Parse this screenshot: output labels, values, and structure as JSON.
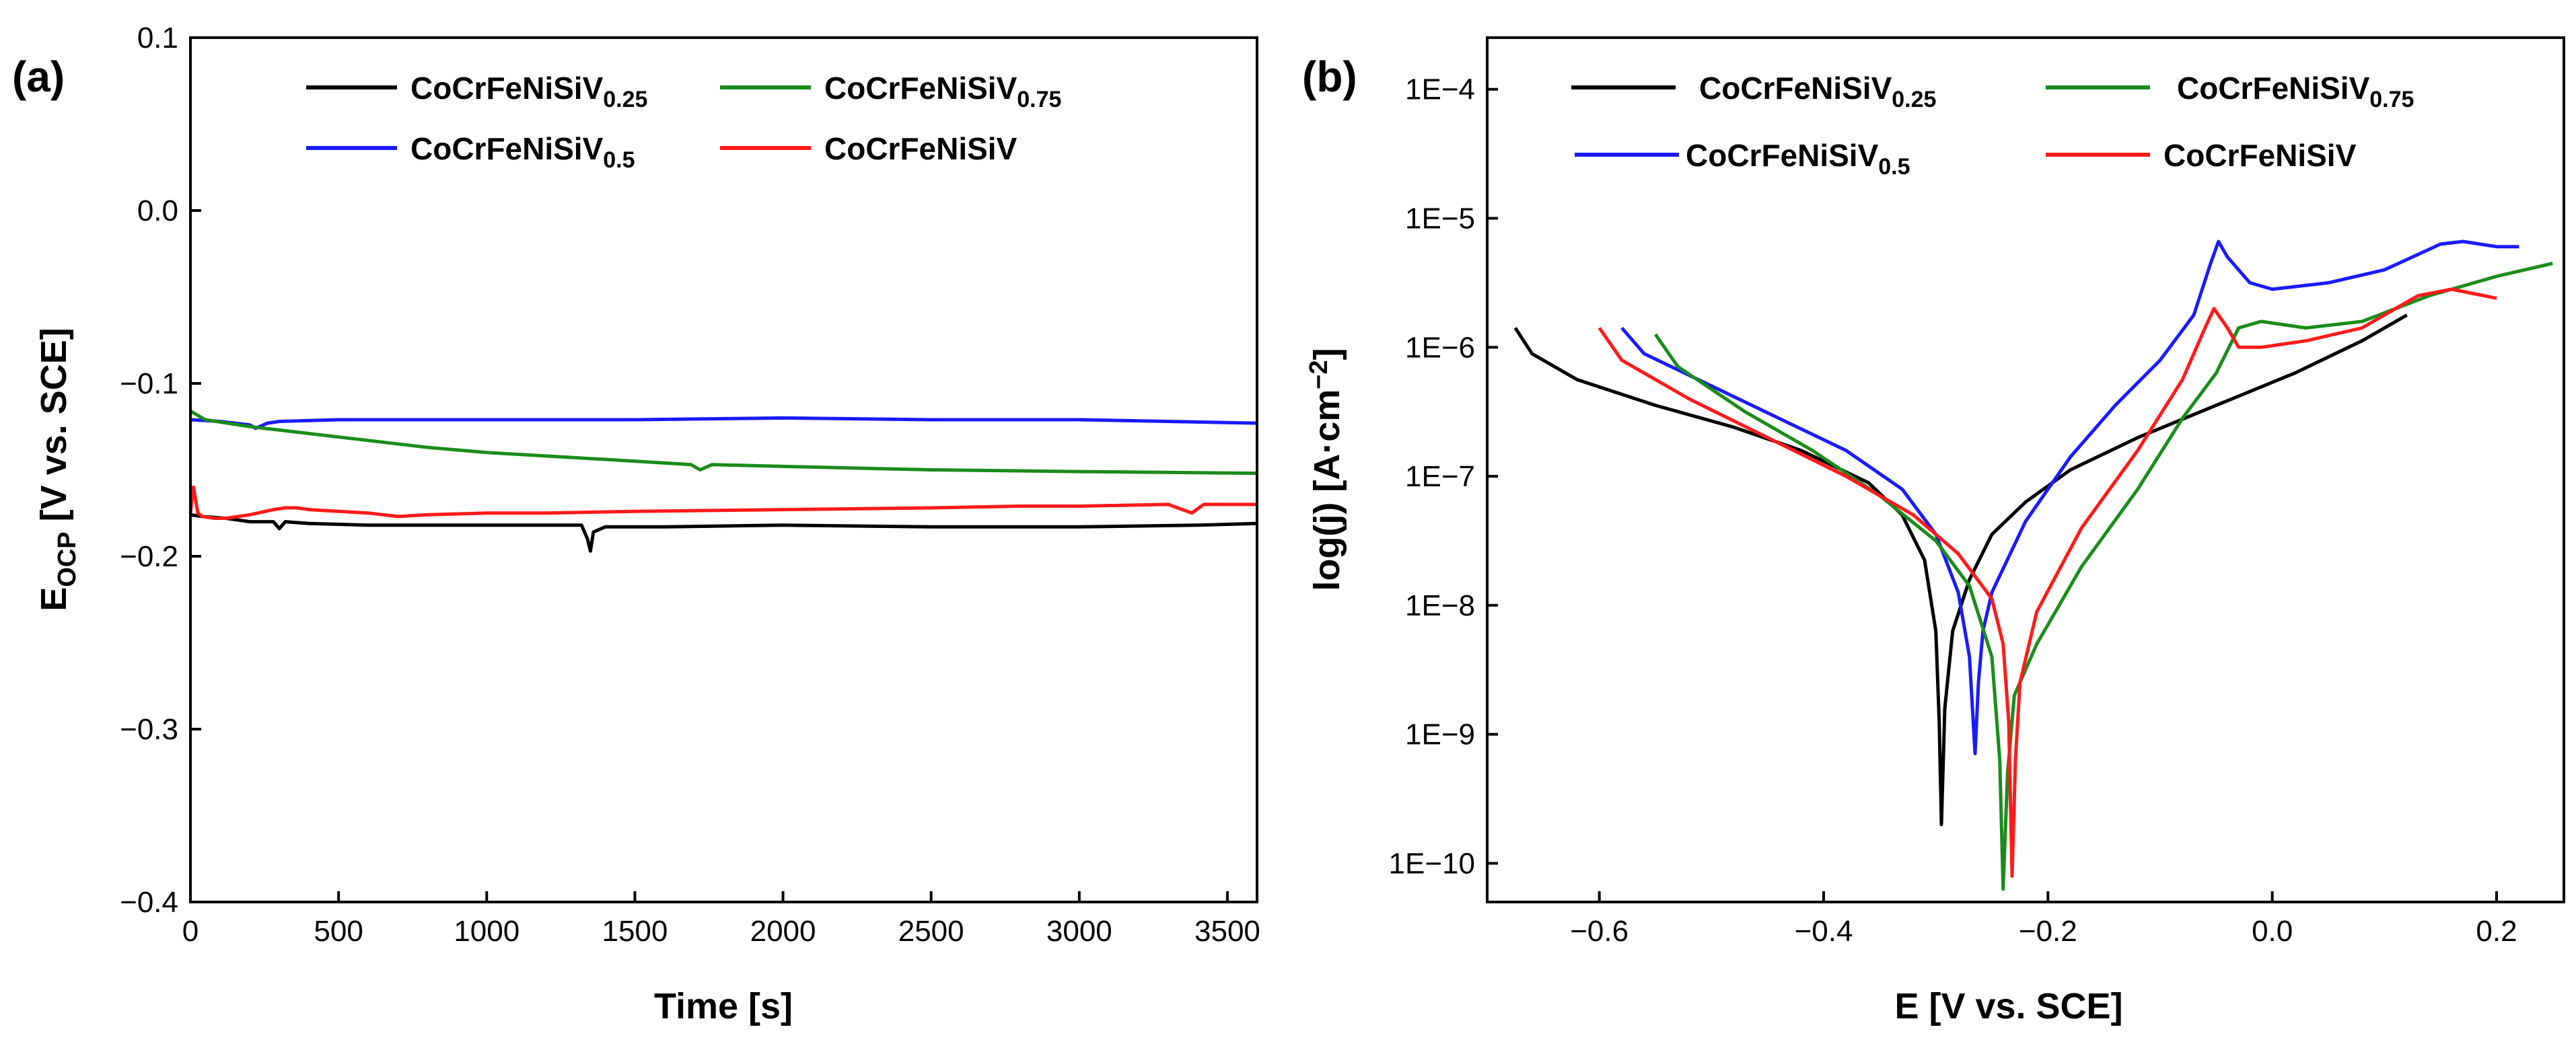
{
  "panels": [
    {
      "label": "(a)",
      "type": "line",
      "xlabel": "Time [s]",
      "ylabel_main": "E",
      "ylabel_sub": "OCP",
      "ylabel_rest": " [V vs. SCE]",
      "xlim": [
        0,
        3600
      ],
      "ylim": [
        -0.4,
        0.1
      ],
      "xticks": [
        "0",
        "500",
        "1000",
        "1500",
        "2000",
        "2500",
        "3000",
        "3500"
      ],
      "xtick_values": [
        0,
        500,
        1000,
        1500,
        2000,
        2500,
        3000,
        3500
      ],
      "yticks": [
        "−0.4",
        "−0.3",
        "−0.2",
        "−0.1",
        "0.0",
        "0.1"
      ],
      "ytick_values": [
        -0.4,
        -0.3,
        -0.2,
        -0.1,
        0.0,
        0.1
      ],
      "series": [
        {
          "name": "CoCrFeNiSiV",
          "sub": "0.25",
          "color": "#000000",
          "x": [
            0,
            40,
            120,
            200,
            280,
            300,
            320,
            400,
            600,
            800,
            1000,
            1200,
            1320,
            1340,
            1350,
            1360,
            1400,
            1600,
            2000,
            2500,
            3000,
            3400,
            3600
          ],
          "y": [
            -0.176,
            -0.177,
            -0.178,
            -0.18,
            -0.18,
            -0.184,
            -0.18,
            -0.181,
            -0.182,
            -0.182,
            -0.182,
            -0.182,
            -0.182,
            -0.19,
            -0.197,
            -0.186,
            -0.183,
            -0.183,
            -0.182,
            -0.183,
            -0.183,
            -0.182,
            -0.181
          ]
        },
        {
          "name": "CoCrFeNiSiV",
          "sub": "0.5",
          "color": "#1a1aff",
          "x": [
            0,
            100,
            200,
            220,
            260,
            300,
            500,
            800,
            1000,
            1500,
            2000,
            2500,
            3000,
            3300,
            3600
          ],
          "y": [
            -0.121,
            -0.122,
            -0.124,
            -0.126,
            -0.123,
            -0.122,
            -0.121,
            -0.121,
            -0.121,
            -0.121,
            -0.12,
            -0.121,
            -0.121,
            -0.122,
            -0.123
          ]
        },
        {
          "name": "CoCrFeNiSiV",
          "sub": "0.75",
          "color": "#1a8c1a",
          "x": [
            0,
            50,
            200,
            400,
            600,
            800,
            1000,
            1200,
            1500,
            1690,
            1720,
            1760,
            2000,
            2500,
            3000,
            3600
          ],
          "y": [
            -0.116,
            -0.121,
            -0.125,
            -0.129,
            -0.133,
            -0.137,
            -0.14,
            -0.142,
            -0.145,
            -0.147,
            -0.15,
            -0.147,
            -0.148,
            -0.15,
            -0.151,
            -0.152
          ]
        },
        {
          "name": "CoCrFeNiSiV",
          "sub": "",
          "color": "#ff1a1a",
          "x": [
            0,
            10,
            25,
            40,
            80,
            120,
            200,
            280,
            320,
            360,
            400,
            500,
            600,
            700,
            800,
            1000,
            1200,
            1500,
            2000,
            2500,
            2800,
            3000,
            3300,
            3380,
            3420,
            3600
          ],
          "y": [
            -0.175,
            -0.16,
            -0.175,
            -0.177,
            -0.178,
            -0.178,
            -0.176,
            -0.173,
            -0.172,
            -0.172,
            -0.173,
            -0.174,
            -0.175,
            -0.177,
            -0.176,
            -0.175,
            -0.175,
            -0.174,
            -0.173,
            -0.172,
            -0.171,
            -0.171,
            -0.17,
            -0.175,
            -0.17,
            -0.17
          ]
        }
      ]
    },
    {
      "label": "(b)",
      "type": "line",
      "xlabel": "E [V vs. SCE]",
      "ylabel_main": "log(j) [A·cm",
      "ylabel_sup": "−2",
      "ylabel_rest": "]",
      "xlim": [
        -0.7,
        0.26
      ],
      "ylim_exp": [
        -10.3,
        -3.6
      ],
      "xticks": [
        "−0.6",
        "−0.4",
        "−0.2",
        "0.0",
        "0.2"
      ],
      "xtick_values": [
        -0.6,
        -0.4,
        -0.2,
        0.0,
        0.2
      ],
      "yticks": [
        "1E−10",
        "1E−9",
        "1E−8",
        "1E−7",
        "1E−6",
        "1E−5",
        "1E−4"
      ],
      "ytick_exps": [
        -10,
        -9,
        -8,
        -7,
        -6,
        -5,
        -4
      ],
      "series": [
        {
          "name": "CoCrFeNiSiV",
          "sub": "0.25",
          "color": "#000000",
          "x": [
            -0.675,
            -0.66,
            -0.62,
            -0.55,
            -0.48,
            -0.42,
            -0.36,
            -0.33,
            -0.31,
            -0.3,
            -0.297,
            -0.295,
            -0.292,
            -0.285,
            -0.27,
            -0.25,
            -0.22,
            -0.18,
            -0.12,
            -0.05,
            0.02,
            0.08,
            0.12
          ],
          "y": [
            -5.85,
            -6.05,
            -6.25,
            -6.45,
            -6.62,
            -6.8,
            -7.05,
            -7.3,
            -7.65,
            -8.2,
            -8.9,
            -9.7,
            -8.8,
            -8.2,
            -7.8,
            -7.45,
            -7.2,
            -6.95,
            -6.7,
            -6.45,
            -6.2,
            -5.95,
            -5.75
          ]
        },
        {
          "name": "CoCrFeNiSiV",
          "sub": "0.5",
          "color": "#1a1aff",
          "x": [
            -0.58,
            -0.56,
            -0.5,
            -0.44,
            -0.38,
            -0.33,
            -0.3,
            -0.28,
            -0.27,
            -0.265,
            -0.262,
            -0.258,
            -0.25,
            -0.22,
            -0.18,
            -0.14,
            -0.1,
            -0.07,
            -0.055,
            -0.048,
            -0.04,
            -0.02,
            0.0,
            0.05,
            0.1,
            0.15,
            0.17,
            0.2,
            0.22
          ],
          "y": [
            -5.85,
            -6.05,
            -6.3,
            -6.55,
            -6.8,
            -7.1,
            -7.45,
            -7.9,
            -8.4,
            -9.15,
            -8.6,
            -8.2,
            -7.9,
            -7.35,
            -6.85,
            -6.45,
            -6.1,
            -5.75,
            -5.35,
            -5.18,
            -5.3,
            -5.5,
            -5.55,
            -5.5,
            -5.4,
            -5.2,
            -5.18,
            -5.22,
            -5.22
          ]
        },
        {
          "name": "CoCrFeNiSiV",
          "sub": "0.75",
          "color": "#1a8c1a",
          "x": [
            -0.55,
            -0.53,
            -0.47,
            -0.41,
            -0.35,
            -0.3,
            -0.27,
            -0.25,
            -0.243,
            -0.24,
            -0.236,
            -0.23,
            -0.21,
            -0.17,
            -0.12,
            -0.08,
            -0.05,
            -0.03,
            -0.01,
            0.03,
            0.08,
            0.14,
            0.2,
            0.25
          ],
          "y": [
            -5.9,
            -6.15,
            -6.5,
            -6.8,
            -7.15,
            -7.5,
            -7.85,
            -8.4,
            -9.2,
            -10.2,
            -9.3,
            -8.7,
            -8.3,
            -7.7,
            -7.1,
            -6.55,
            -6.2,
            -5.85,
            -5.8,
            -5.85,
            -5.8,
            -5.6,
            -5.45,
            -5.35
          ]
        },
        {
          "name": "CoCrFeNiSiV",
          "sub": "",
          "color": "#ff1a1a",
          "x": [
            -0.6,
            -0.58,
            -0.52,
            -0.45,
            -0.38,
            -0.32,
            -0.28,
            -0.25,
            -0.24,
            -0.235,
            -0.232,
            -0.229,
            -0.225,
            -0.21,
            -0.17,
            -0.12,
            -0.08,
            -0.06,
            -0.052,
            -0.04,
            -0.03,
            -0.01,
            0.03,
            0.08,
            0.13,
            0.16,
            0.2
          ],
          "y": [
            -5.85,
            -6.1,
            -6.4,
            -6.7,
            -7.0,
            -7.3,
            -7.6,
            -7.95,
            -8.3,
            -8.9,
            -10.1,
            -9.2,
            -8.6,
            -8.05,
            -7.4,
            -6.8,
            -6.25,
            -5.85,
            -5.7,
            -5.85,
            -6.0,
            -6.0,
            -5.95,
            -5.85,
            -5.6,
            -5.55,
            -5.62
          ]
        }
      ]
    }
  ],
  "legends": {
    "a_left": [
      {
        "name": "CoCrFeNiSiV",
        "sub": "0.25",
        "color": "#000000"
      },
      {
        "name": "CoCrFeNiSiV",
        "sub": "0.5",
        "color": "#1a1aff"
      }
    ],
    "a_right": [
      {
        "name": "CoCrFeNiSiV",
        "sub": "0.75",
        "color": "#1a8c1a"
      },
      {
        "name": "CoCrFeNiSiV",
        "sub": "",
        "color": "#ff1a1a"
      }
    ]
  }
}
